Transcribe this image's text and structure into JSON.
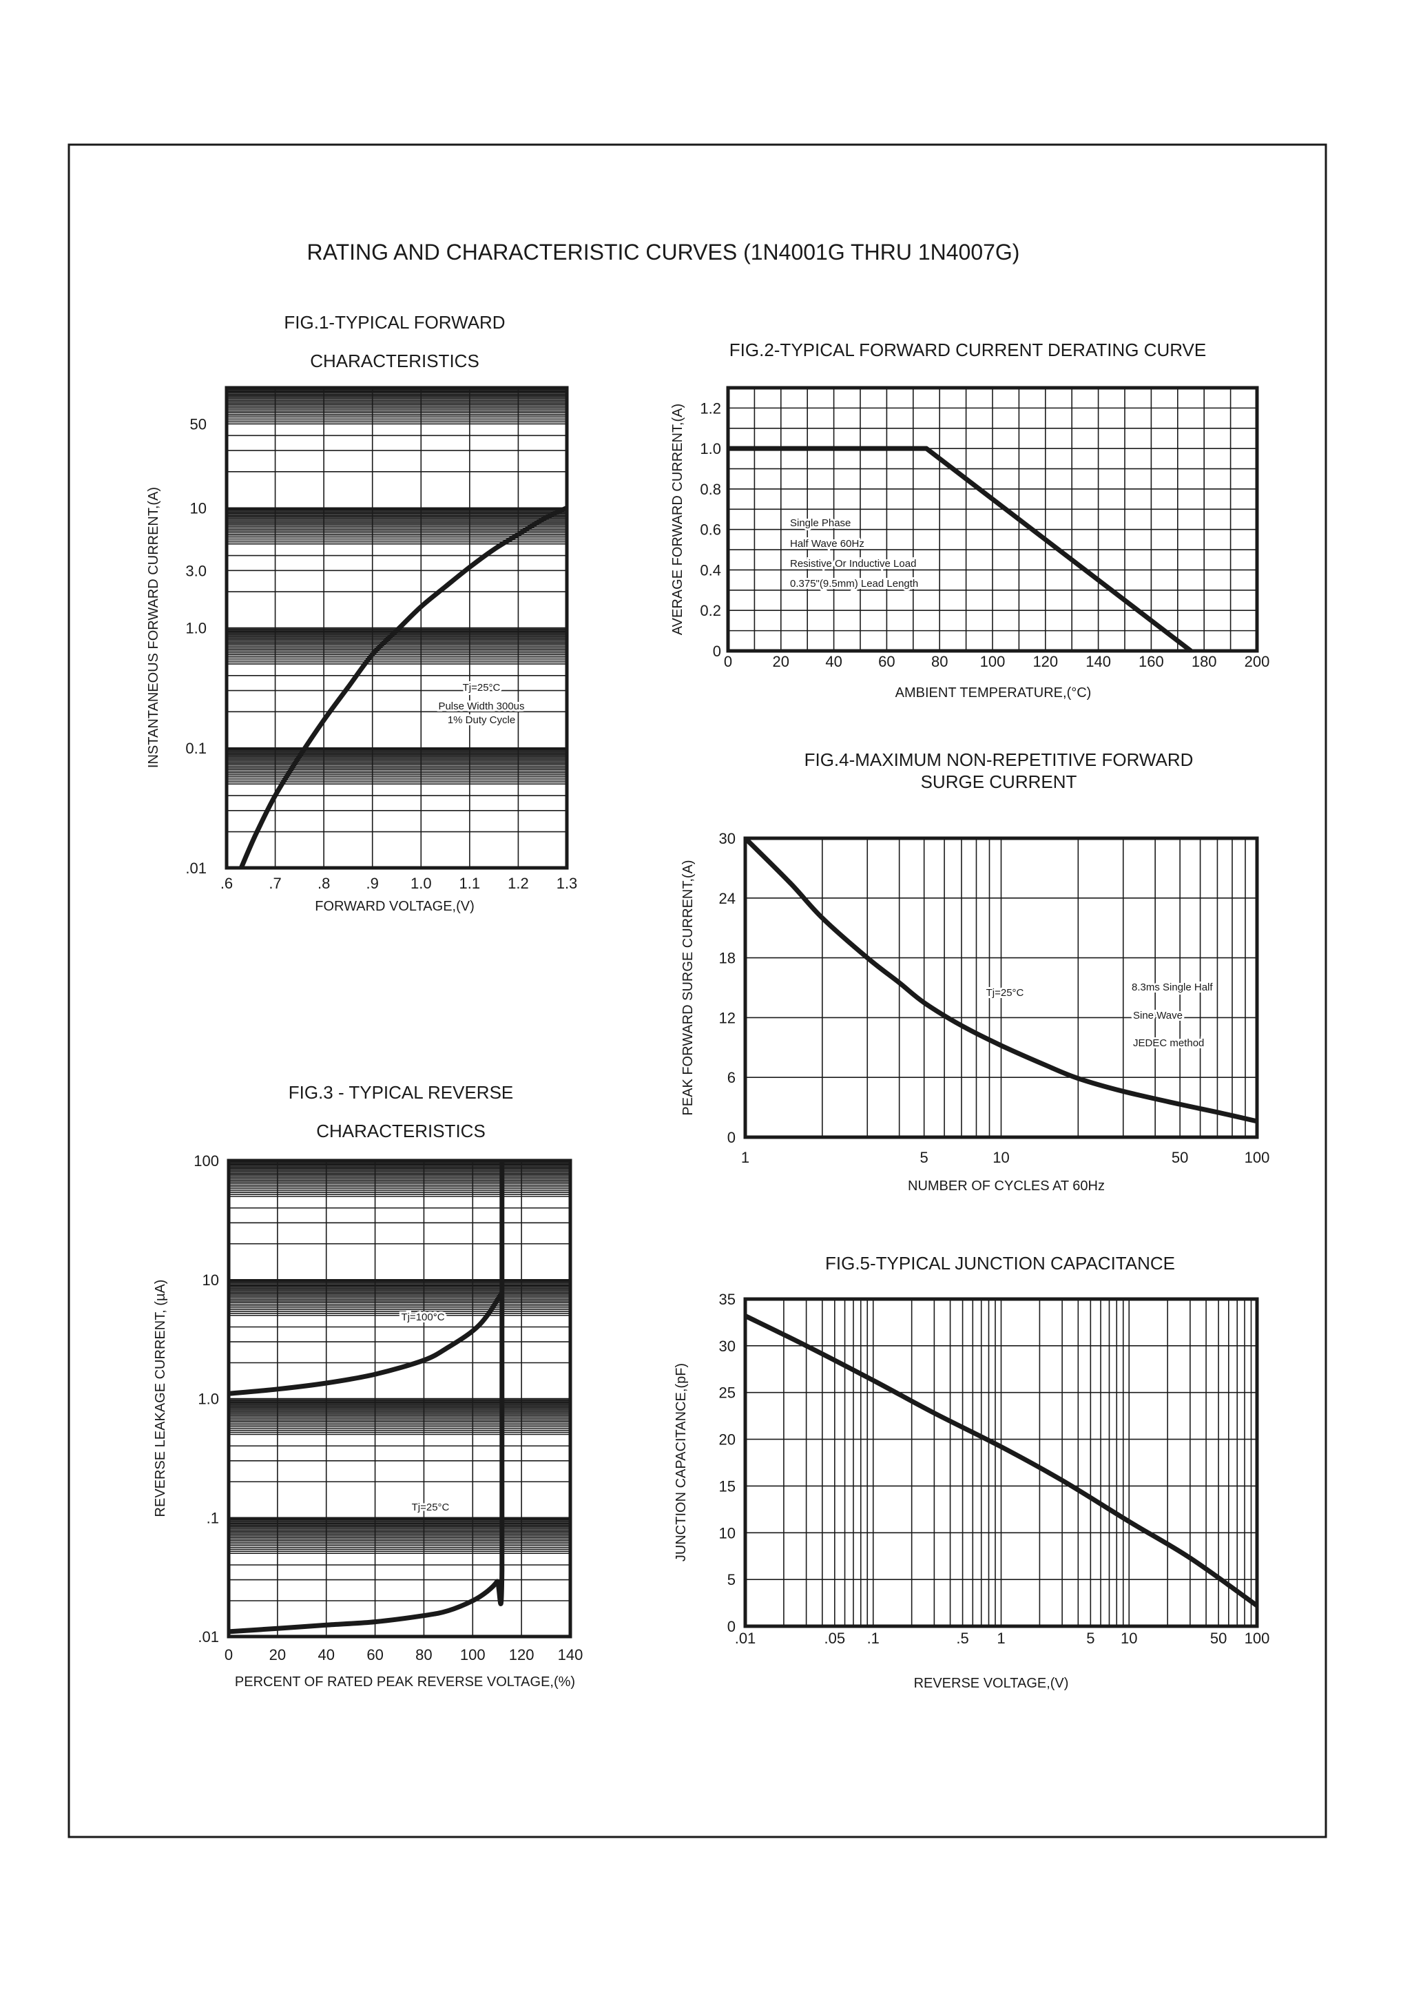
{
  "page_title": "RATING AND CHARACTERISTIC CURVES (1N4001G THRU 1N4007G)",
  "chart_data": [
    {
      "id": "fig1",
      "type": "line",
      "title": [
        "FIG.1-TYPICAL FORWARD",
        "CHARACTERISTICS"
      ],
      "xlabel": "FORWARD VOLTAGE,(V)",
      "ylabel": "INSTANTANEOUS FORWARD CURRENT,(A)",
      "xscale": "linear",
      "yscale": "log",
      "xlim": [
        0.6,
        1.3
      ],
      "ylim": [
        0.01,
        100
      ],
      "grid": true,
      "xticks": [
        0.6,
        0.7,
        0.8,
        0.9,
        1.0,
        1.1,
        1.2,
        1.3
      ],
      "xtick_labels": [
        ".6",
        ".7",
        ".8",
        ".9",
        "1.0",
        "1.1",
        "1.2",
        "1.3"
      ],
      "yticks": [
        50,
        10,
        3,
        1,
        0.1,
        0.01
      ],
      "ytick_labels": [
        "50",
        "10",
        "3.0",
        "1.0",
        "0.1",
        ".01"
      ],
      "annotations": [
        "Tj=25°C",
        "Pulse Width 300us",
        "1% Duty Cycle"
      ],
      "series": [
        {
          "x": [
            0.63,
            0.66,
            0.7,
            0.75,
            0.8,
            0.85,
            0.9,
            0.95,
            1.0,
            1.05,
            1.1,
            1.15,
            1.2,
            1.25,
            1.3
          ],
          "y": [
            0.01,
            0.019,
            0.04,
            0.085,
            0.17,
            0.32,
            0.6,
            0.95,
            1.5,
            2.2,
            3.2,
            4.5,
            6.0,
            8.0,
            10.0
          ]
        }
      ]
    },
    {
      "id": "fig2",
      "type": "line",
      "title": [
        "FIG.2-TYPICAL FORWARD CURRENT DERATING CURVE"
      ],
      "xlabel": "AMBIENT TEMPERATURE,(°C)",
      "ylabel": "AVERAGE FORWARD CURRENT,(A)",
      "xscale": "linear",
      "yscale": "linear",
      "xlim": [
        0,
        200
      ],
      "ylim": [
        0,
        1.3
      ],
      "grid": true,
      "xticks": [
        0,
        20,
        40,
        60,
        80,
        100,
        120,
        140,
        160,
        180,
        200
      ],
      "xtick_labels": [
        "0",
        "20",
        "40",
        "60",
        "80",
        "100",
        "120",
        "140",
        "160",
        "180",
        "200"
      ],
      "yticks": [
        0,
        0.2,
        0.4,
        0.6,
        0.8,
        1.0,
        1.2
      ],
      "ytick_labels": [
        "0",
        "0.2",
        "0.4",
        "0.6",
        "0.8",
        "1.0",
        "1.2"
      ],
      "annotations": [
        "Single Phase",
        "Half Wave 60Hz",
        "Resistive Or Inductive Load",
        "0.375\"(9.5mm) Lead Length"
      ],
      "series": [
        {
          "x": [
            0,
            75,
            175
          ],
          "y": [
            1.0,
            1.0,
            0
          ]
        }
      ]
    },
    {
      "id": "fig3",
      "type": "line",
      "title": [
        "FIG.3 - TYPICAL REVERSE",
        "CHARACTERISTICS"
      ],
      "xlabel": "PERCENT OF RATED PEAK REVERSE VOLTAGE,(%)",
      "ylabel": "REVERSE LEAKAGE CURRENT, (µA)",
      "xscale": "linear",
      "yscale": "log",
      "xlim": [
        0,
        140
      ],
      "ylim": [
        0.01,
        100
      ],
      "grid": true,
      "xticks": [
        0,
        20,
        40,
        60,
        80,
        100,
        120,
        140
      ],
      "xtick_labels": [
        "0",
        "20",
        "40",
        "60",
        "80",
        "100",
        "120",
        "140"
      ],
      "yticks": [
        100,
        10,
        1,
        0.1,
        0.01
      ],
      "ytick_labels": [
        "100",
        "10",
        "1.0",
        ".1",
        ".01"
      ],
      "annotations": [
        "Tj=100°C",
        "Tj=25°C"
      ],
      "series": [
        {
          "name": "Tj=100°C",
          "x": [
            0,
            20,
            40,
            60,
            80,
            90,
            100,
            106,
            112
          ],
          "y": [
            1.1,
            1.2,
            1.35,
            1.6,
            2.1,
            2.7,
            3.7,
            5.0,
            7.8
          ]
        },
        {
          "name": "Tj=25°C",
          "x": [
            0,
            20,
            40,
            60,
            80,
            90,
            100,
            106,
            110,
            112,
            112
          ],
          "y": [
            0.011,
            0.0117,
            0.0125,
            0.0133,
            0.015,
            0.0165,
            0.02,
            0.024,
            0.029,
            0.036,
            100
          ]
        }
      ]
    },
    {
      "id": "fig4",
      "type": "line",
      "title": [
        "FIG.4-MAXIMUM NON-REPETITIVE FORWARD",
        "SURGE CURRENT"
      ],
      "xlabel": "NUMBER OF CYCLES AT 60Hz",
      "ylabel": "PEAK FORWARD SURGE CURRENT,(A)",
      "xscale": "log",
      "yscale": "linear",
      "xlim": [
        1,
        100
      ],
      "ylim": [
        0,
        30
      ],
      "grid": true,
      "xticks": [
        1,
        5,
        10,
        50,
        100
      ],
      "xtick_labels": [
        "1",
        "5",
        "10",
        "50",
        "100"
      ],
      "yticks": [
        0,
        6,
        12,
        18,
        24,
        30
      ],
      "ytick_labels": [
        "0",
        "6",
        "12",
        "18",
        "24",
        "30"
      ],
      "annotations": [
        "Tj=25°C",
        "8.3ms Single Half",
        "Sine Wave",
        "JEDEC method"
      ],
      "series": [
        {
          "x": [
            1,
            1.5,
            2,
            3,
            4,
            5,
            7,
            10,
            15,
            20,
            30,
            50,
            70,
            100
          ],
          "y": [
            30,
            25.5,
            22,
            18,
            15.5,
            13.5,
            11.2,
            9.2,
            7.2,
            5.9,
            4.6,
            3.3,
            2.5,
            1.6
          ]
        }
      ]
    },
    {
      "id": "fig5",
      "type": "line",
      "title": [
        "FIG.5-TYPICAL JUNCTION CAPACITANCE"
      ],
      "xlabel": "REVERSE VOLTAGE,(V)",
      "ylabel": "JUNCTION CAPACITANCE,(pF)",
      "xscale": "log",
      "yscale": "linear",
      "xlim": [
        0.01,
        100
      ],
      "ylim": [
        0,
        35
      ],
      "grid": true,
      "xticks": [
        0.01,
        0.05,
        0.1,
        0.5,
        1,
        5,
        10,
        50,
        100
      ],
      "xtick_labels": [
        ".01",
        ".05",
        ".1",
        ".5",
        "1",
        "5",
        "10",
        "50",
        "100"
      ],
      "yticks": [
        0,
        5,
        10,
        15,
        20,
        25,
        30,
        35
      ],
      "ytick_labels": [
        "0",
        "5",
        "10",
        "15",
        "20",
        "25",
        "30",
        "35"
      ],
      "annotations": [],
      "series": [
        {
          "x": [
            0.01,
            0.03,
            0.1,
            0.3,
            1,
            3,
            10,
            30,
            100
          ],
          "y": [
            33.2,
            30,
            26.3,
            22.8,
            19.2,
            15.6,
            11.2,
            7.3,
            2.2
          ]
        }
      ]
    }
  ]
}
